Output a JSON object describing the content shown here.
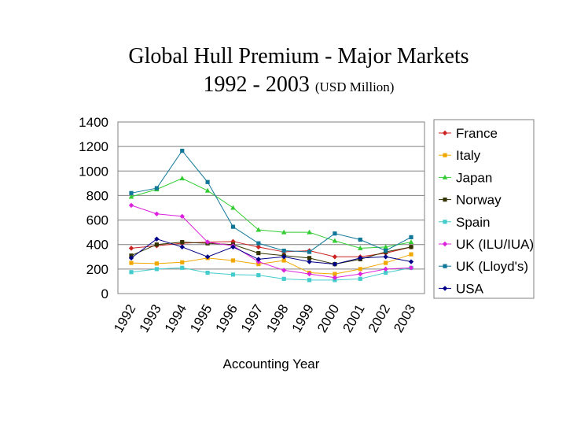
{
  "chart_data": {
    "type": "line",
    "title": "Global Hull Premium - Major Markets",
    "title_year_range": "1992 - 2003",
    "title_unit": "(USD Million)",
    "xlabel": "Accounting Year",
    "ylabel": "",
    "ylim": [
      0,
      1400
    ],
    "yticks": [
      0,
      200,
      400,
      600,
      800,
      1000,
      1200,
      1400
    ],
    "grid": true,
    "legend_position": "right",
    "categories": [
      "1992",
      "1993",
      "1994",
      "1995",
      "1996",
      "1997",
      "1998",
      "1999",
      "2000",
      "2001",
      "2002",
      "2003"
    ],
    "series": [
      {
        "name": "France",
        "color": "#cc2222",
        "marker": "diamond",
        "values": [
          370,
          390,
          410,
          420,
          425,
          380,
          340,
          350,
          300,
          300,
          330,
          380
        ]
      },
      {
        "name": "Italy",
        "color": "#f0a800",
        "marker": "square",
        "values": [
          250,
          245,
          255,
          290,
          270,
          240,
          270,
          170,
          160,
          200,
          250,
          320
        ]
      },
      {
        "name": "Japan",
        "color": "#33cc33",
        "marker": "triangle",
        "values": [
          790,
          850,
          940,
          840,
          700,
          520,
          500,
          500,
          430,
          370,
          380,
          420
        ]
      },
      {
        "name": "Norway",
        "color": "#333300",
        "marker": "square",
        "values": [
          310,
          400,
          420,
          410,
          400,
          330,
          310,
          290,
          240,
          280,
          340,
          380
        ]
      },
      {
        "name": "Spain",
        "color": "#44cccc",
        "marker": "square",
        "values": [
          175,
          200,
          210,
          170,
          155,
          150,
          120,
          110,
          110,
          120,
          170,
          210
        ]
      },
      {
        "name": "UK (ILU/IUA)",
        "color": "#dd22dd",
        "marker": "diamond",
        "values": [
          720,
          650,
          630,
          420,
          390,
          260,
          190,
          160,
          130,
          160,
          200,
          210
        ]
      },
      {
        "name": "UK (Lloyd's)",
        "color": "#117799",
        "marker": "square",
        "values": [
          820,
          860,
          1165,
          910,
          545,
          410,
          350,
          340,
          490,
          440,
          350,
          460
        ]
      },
      {
        "name": "USA",
        "color": "#000088",
        "marker": "diamond",
        "values": [
          290,
          445,
          380,
          300,
          380,
          280,
          300,
          260,
          240,
          290,
          300,
          260
        ]
      }
    ]
  }
}
